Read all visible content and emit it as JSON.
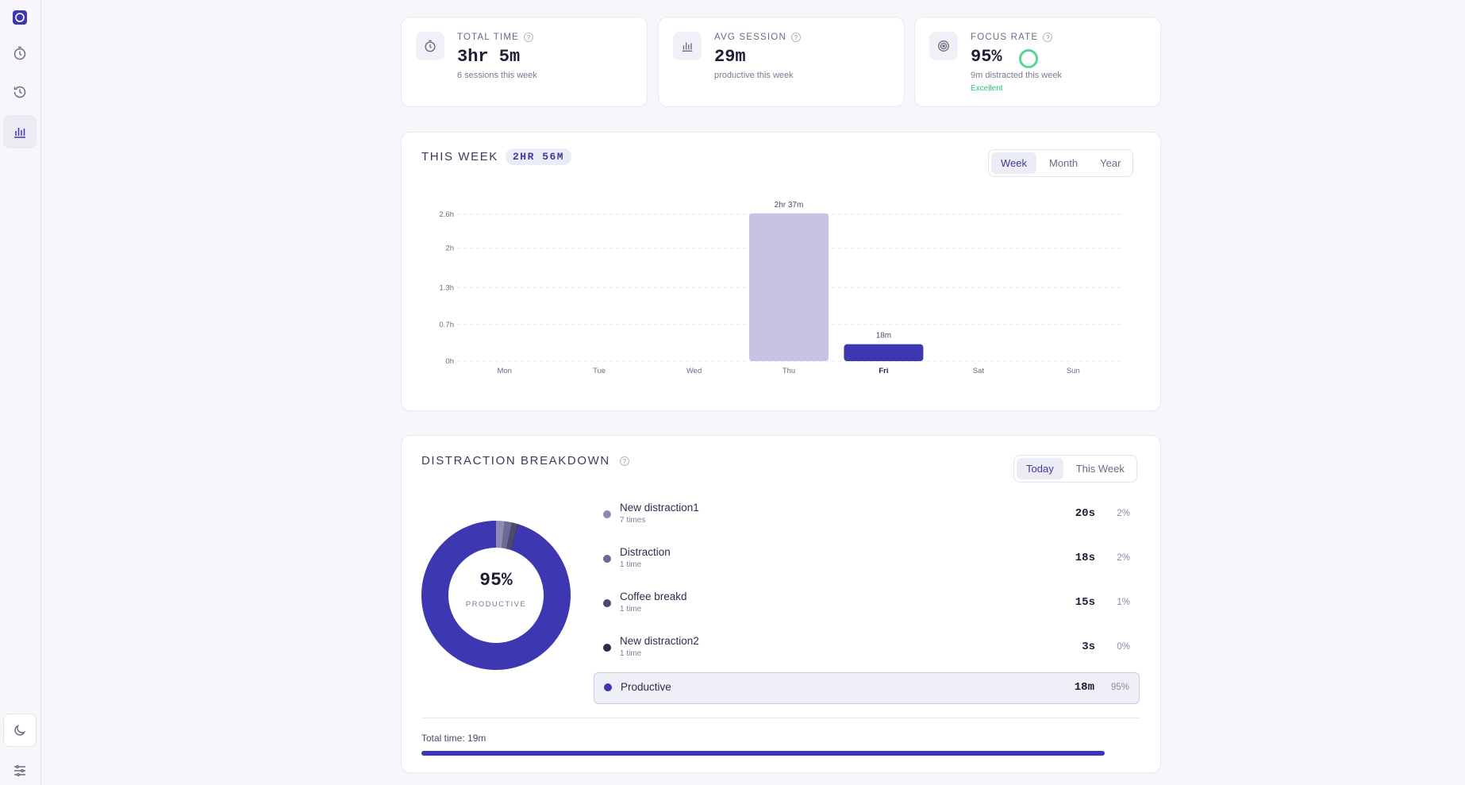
{
  "colors": {
    "accent": "#3e37b2",
    "accent_light": "#c6c3e4",
    "success": "#2fbf71",
    "ring": "#58d68d"
  },
  "sidebar": {
    "items": [
      {
        "name": "app-logo",
        "icon": "logo-icon"
      },
      {
        "name": "timer",
        "icon": "stopwatch-icon"
      },
      {
        "name": "history",
        "icon": "history-icon"
      },
      {
        "name": "stats",
        "icon": "bar-chart-icon",
        "active": true
      },
      {
        "name": "theme",
        "icon": "moon-icon"
      },
      {
        "name": "settings",
        "icon": "sliders-icon"
      }
    ]
  },
  "stats": {
    "total": {
      "label": "Total time",
      "help": "?",
      "value": "3hr 5m",
      "sub": "6 sessions this week",
      "icon": "stopwatch-icon"
    },
    "avg": {
      "label": "Avg session",
      "help": "?",
      "value": "29m",
      "sub": "productive this week",
      "icon": "bar-chart-icon"
    },
    "focus": {
      "label": "Focus rate",
      "help": "?",
      "value": "95%",
      "sub": "9m distracted this week",
      "badge": "Excellent",
      "icon": "target-icon"
    }
  },
  "week": {
    "title": "This week",
    "total": "2HR 56M",
    "tabs": [
      "Week",
      "Month",
      "Year"
    ],
    "active_tab": "Week"
  },
  "chart_data": {
    "type": "bar",
    "categories": [
      "Mon",
      "Tue",
      "Wed",
      "Thu",
      "Fri",
      "Sat",
      "Sun"
    ],
    "values": [
      0,
      0,
      0,
      2.6167,
      0.3,
      0,
      0
    ],
    "value_labels": [
      "",
      "",
      "",
      "2hr 37m",
      "18m",
      "",
      ""
    ],
    "bar_colors": [
      "#c6c3e4",
      "#c6c3e4",
      "#c6c3e4",
      "#c6c3e4",
      "#3e37b2",
      "#c6c3e4",
      "#c6c3e4"
    ],
    "highlight_category": "Fri",
    "y_ticks": [
      0,
      0.65,
      1.3,
      2,
      2.6
    ],
    "y_tick_labels": [
      "0h",
      "0.7h",
      "1.3h",
      "2h",
      "2.6h"
    ],
    "ylim": [
      0,
      2.6
    ],
    "grid": true
  },
  "distraction": {
    "title": "Distraction breakdown",
    "help": "?",
    "tabs": [
      "Today",
      "This Week"
    ],
    "active_tab": "Today",
    "center_value": "95%",
    "center_label": "PRODUCTIVE",
    "items": [
      {
        "name": "New distraction1",
        "count": "7 times",
        "time": "20s",
        "pct": "2%",
        "color": "#8e8ab5"
      },
      {
        "name": "Distraction",
        "count": "1 time",
        "time": "18s",
        "pct": "2%",
        "color": "#6d6995"
      },
      {
        "name": "Coffee breakd",
        "count": "1 time",
        "time": "15s",
        "pct": "1%",
        "color": "#4e4a72"
      },
      {
        "name": "New distraction2",
        "count": "1 time",
        "time": "3s",
        "pct": "0%",
        "color": "#2f2d46"
      }
    ],
    "productive": {
      "name": "Productive",
      "time": "18m",
      "pct": "95%",
      "color": "#3e37b2"
    },
    "donut_segments": [
      {
        "label": "New distraction1",
        "value": 20,
        "color": "#8e8ab5"
      },
      {
        "label": "Distraction",
        "value": 18,
        "color": "#6d6995"
      },
      {
        "label": "Coffee breakd",
        "value": 15,
        "color": "#4e4a72"
      },
      {
        "label": "New distraction2",
        "value": 3,
        "color": "#2f2d46"
      },
      {
        "label": "Productive",
        "value": 1080,
        "color": "#3e37b2"
      }
    ],
    "total_label": "Total time: 19m",
    "total_fill": 1.0
  }
}
